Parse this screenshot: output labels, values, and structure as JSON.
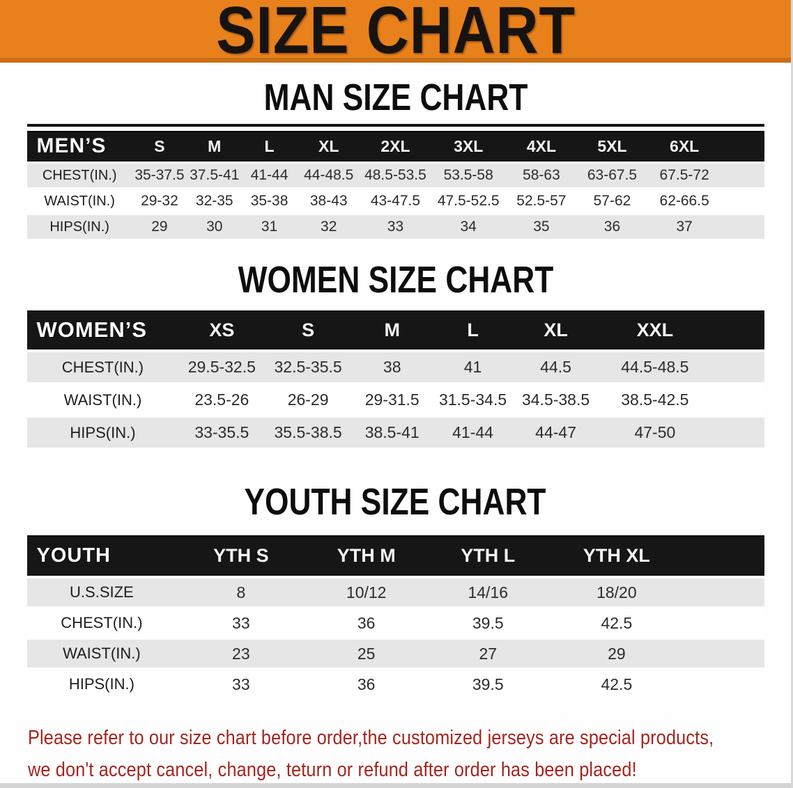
{
  "banner": {
    "title": "SIZE CHART",
    "bg_color": "#E8811C",
    "edge_color": "#C96F15"
  },
  "sections": {
    "men": {
      "heading": "MAN SIZE CHART",
      "table": {
        "header_label": "MEN’S",
        "columns": [
          "S",
          "M",
          "L",
          "XL",
          "2XL",
          "3XL",
          "4XL",
          "5XL",
          "6XL"
        ],
        "rows": [
          {
            "label": "CHEST(IN.)",
            "values": [
              "35-37.5",
              "37.5-41",
              "41-44",
              "44-48.5",
              "48.5-53.5",
              "53.5-58",
              "58-63",
              "63-67.5",
              "67.5-72"
            ]
          },
          {
            "label": "WAIST(IN.)",
            "values": [
              "29-32",
              "32-35",
              "35-38",
              "38-43",
              "43-47.5",
              "47.5-52.5",
              "52.5-57",
              "57-62",
              "62-66.5"
            ]
          },
          {
            "label": "HIPS(IN.)",
            "values": [
              "29",
              "30",
              "31",
              "32",
              "33",
              "34",
              "35",
              "36",
              "37"
            ]
          }
        ]
      }
    },
    "women": {
      "heading": "WOMEN SIZE CHART",
      "table": {
        "header_label": "WOMEN’S",
        "columns": [
          "XS",
          "S",
          "M",
          "L",
          "XL",
          "XXL"
        ],
        "rows": [
          {
            "label": "CHEST(IN.)",
            "values": [
              "29.5-32.5",
              "32.5-35.5",
              "38",
              "41",
              "44.5",
              "44.5-48.5"
            ]
          },
          {
            "label": "WAIST(IN.)",
            "values": [
              "23.5-26",
              "26-29",
              "29-31.5",
              "31.5-34.5",
              "34.5-38.5",
              "38.5-42.5"
            ]
          },
          {
            "label": "HIPS(IN.)",
            "values": [
              "33-35.5",
              "35.5-38.5",
              "38.5-41",
              "41-44",
              "44-47",
              "47-50"
            ]
          }
        ]
      }
    },
    "youth": {
      "heading": "YOUTH SIZE CHART",
      "table": {
        "header_label": "YOUTH",
        "columns": [
          "YTH S",
          "YTH M",
          "YTH L",
          "YTH XL"
        ],
        "rows": [
          {
            "label": "U.S.SIZE",
            "values": [
              "8",
              "10/12",
              "14/16",
              "18/20"
            ]
          },
          {
            "label": "CHEST(IN.)",
            "values": [
              "33",
              "36",
              "39.5",
              "42.5"
            ]
          },
          {
            "label": "WAIST(IN.)",
            "values": [
              "23",
              "25",
              "27",
              "29"
            ]
          },
          {
            "label": "HIPS(IN.)",
            "values": [
              "33",
              "36",
              "39.5",
              "42.5"
            ]
          }
        ]
      }
    }
  },
  "note": {
    "color": "#A3251F",
    "lines": [
      "Please refer to our size chart before order,the customized jerseys are special products,",
      "we don't accept cancel, change, teturn or refund after order has been placed!"
    ]
  }
}
